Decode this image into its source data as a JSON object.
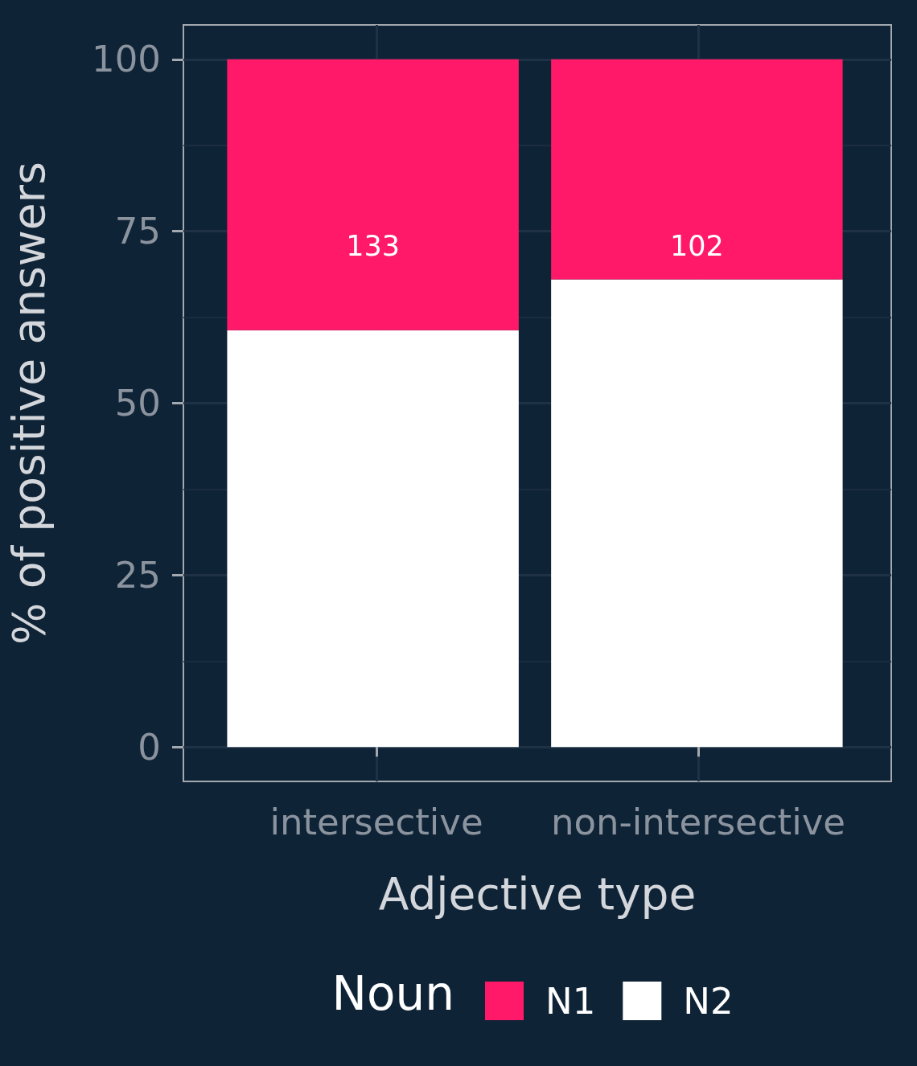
{
  "chart_data": {
    "type": "bar",
    "xlabel": "Adjective type",
    "ylabel": "% of positive answers",
    "legend_title": "Noun",
    "categories": [
      "intersective",
      "non-intersective"
    ],
    "series": [
      {
        "name": "N2",
        "color": "#ffffff",
        "values": [
          60.6,
          68.0
        ]
      },
      {
        "name": "N1",
        "color": "#ff1968",
        "values": [
          39.4,
          32.0
        ]
      }
    ],
    "stacked": true,
    "annotations": [
      "133",
      "102"
    ],
    "ylim": [
      -5,
      105
    ],
    "yticks": [
      0,
      25,
      50,
      75,
      100
    ],
    "grid": true,
    "legend": "bottom"
  }
}
